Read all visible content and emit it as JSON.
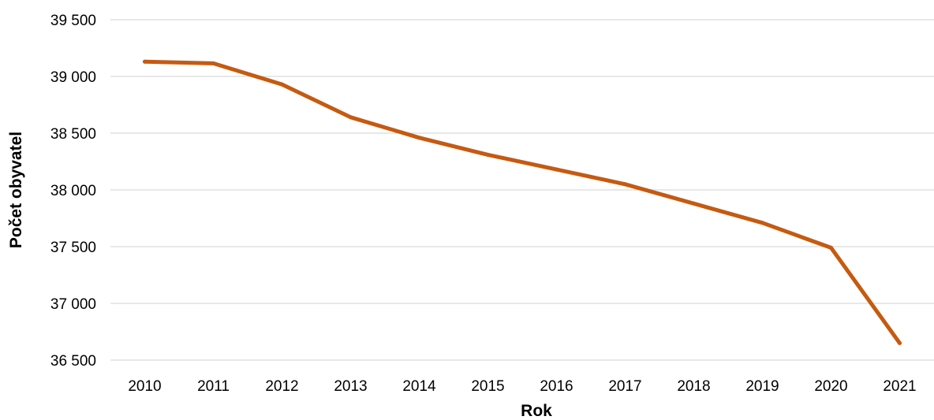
{
  "chart_data": {
    "type": "line",
    "categories": [
      "2010",
      "2011",
      "2012",
      "2013",
      "2014",
      "2015",
      "2016",
      "2017",
      "2018",
      "2019",
      "2020",
      "2021"
    ],
    "series": [
      {
        "values": [
          39130,
          39115,
          38930,
          38640,
          38460,
          38310,
          38180,
          38050,
          37880,
          37710,
          37490,
          36650
        ]
      }
    ],
    "ylim": [
      36500,
      39500
    ],
    "yticks": [
      36500,
      37000,
      37500,
      38000,
      38500,
      39000,
      39500
    ],
    "ytick_labels": [
      "36 500",
      "37 000",
      "37 500",
      "38 000",
      "38 500",
      "39 000",
      "39 500"
    ],
    "xlabel": "Rok",
    "ylabel": "Počet obyvatel",
    "grid": true,
    "legend": "none",
    "color": "#c55a11"
  }
}
